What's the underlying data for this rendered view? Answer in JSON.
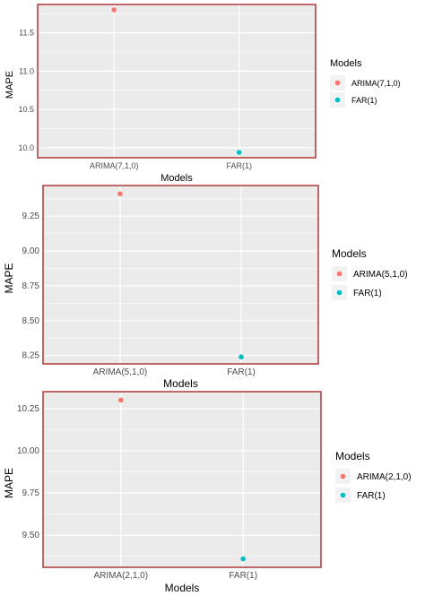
{
  "chart_data": [
    {
      "type": "scatter",
      "title": "",
      "xlabel": "Models",
      "ylabel": "MAPE",
      "categories": [
        "ARIMA(7,1,0)",
        "FAR(1)"
      ],
      "values": [
        11.8,
        9.94
      ],
      "ylim": [
        9.87,
        11.87
      ],
      "yticks": [
        10.0,
        10.5,
        11.0,
        11.5
      ],
      "ytick_labels": [
        "10.0",
        "10.5",
        "11.0",
        "11.5"
      ],
      "grid": true,
      "legend": {
        "title": "Models",
        "position": "right",
        "entries": [
          "ARIMA(7,1,0)",
          "FAR(1)"
        ]
      },
      "colors": [
        "#F8766D",
        "#00BFC4"
      ],
      "panel_background": "#EBEBEB",
      "frame_color": "#A52A2A"
    },
    {
      "type": "scatter",
      "title": "",
      "xlabel": "Models",
      "ylabel": "MAPE",
      "categories": [
        "ARIMA(5,1,0)",
        "FAR(1)"
      ],
      "values": [
        9.41,
        8.24
      ],
      "ylim": [
        8.19,
        9.47
      ],
      "yticks": [
        8.25,
        8.5,
        8.75,
        9.0,
        9.25
      ],
      "ytick_labels": [
        "8.25",
        "8.50",
        "8.75",
        "9.00",
        "9.25"
      ],
      "grid": true,
      "legend": {
        "title": "Models",
        "position": "right",
        "entries": [
          "ARIMA(5,1,0)",
          "FAR(1)"
        ]
      },
      "colors": [
        "#F8766D",
        "#00BFC4"
      ],
      "panel_background": "#EBEBEB",
      "frame_color": "#A52A2A"
    },
    {
      "type": "scatter",
      "title": "",
      "xlabel": "Models",
      "ylabel": "MAPE",
      "categories": [
        "ARIMA(2,1,0)",
        "FAR(1)"
      ],
      "values": [
        10.3,
        9.36
      ],
      "ylim": [
        9.31,
        10.35
      ],
      "yticks": [
        9.5,
        9.75,
        10.0,
        10.25
      ],
      "ytick_labels": [
        "9.50",
        "9.75",
        "10.00",
        "10.25"
      ],
      "grid": true,
      "legend": {
        "title": "Models",
        "position": "right",
        "entries": [
          "ARIMA(2,1,0)",
          "FAR(1)"
        ]
      },
      "colors": [
        "#F8766D",
        "#00BFC4"
      ],
      "panel_background": "#EBEBEB",
      "frame_color": "#A52A2A"
    }
  ]
}
